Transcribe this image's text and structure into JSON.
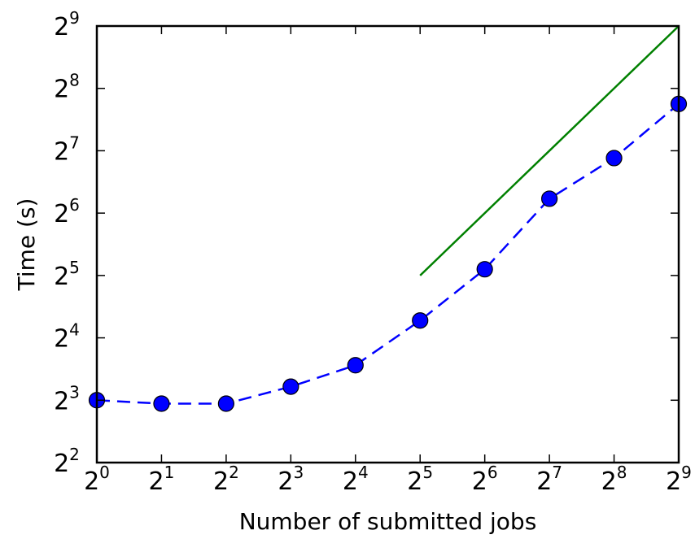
{
  "chart_data": {
    "type": "line",
    "xlabel": "Number of submitted jobs",
    "ylabel": "Time (s)",
    "xscale": "log2",
    "yscale": "log2",
    "xlim": [
      1,
      512
    ],
    "ylim": [
      4,
      512
    ],
    "x_ticks": [
      {
        "base": "2",
        "exp": "0"
      },
      {
        "base": "2",
        "exp": "1"
      },
      {
        "base": "2",
        "exp": "2"
      },
      {
        "base": "2",
        "exp": "3"
      },
      {
        "base": "2",
        "exp": "4"
      },
      {
        "base": "2",
        "exp": "5"
      },
      {
        "base": "2",
        "exp": "6"
      },
      {
        "base": "2",
        "exp": "7"
      },
      {
        "base": "2",
        "exp": "8"
      },
      {
        "base": "2",
        "exp": "9"
      }
    ],
    "y_ticks": [
      {
        "base": "2",
        "exp": "2"
      },
      {
        "base": "2",
        "exp": "3"
      },
      {
        "base": "2",
        "exp": "4"
      },
      {
        "base": "2",
        "exp": "5"
      },
      {
        "base": "2",
        "exp": "6"
      },
      {
        "base": "2",
        "exp": "7"
      },
      {
        "base": "2",
        "exp": "8"
      },
      {
        "base": "2",
        "exp": "9"
      }
    ],
    "grid": false,
    "series": [
      {
        "style": "dashed line with circle markers",
        "color": "#0000ff",
        "x": [
          1,
          2,
          4,
          8,
          16,
          32,
          64,
          128,
          256,
          512
        ],
        "y": [
          8.0,
          7.7,
          7.7,
          9.3,
          11.8,
          19.4,
          34.3,
          75.1,
          118.0,
          215.3
        ]
      },
      {
        "style": "solid line",
        "color": "#008000",
        "x": [
          32,
          512
        ],
        "y": [
          32,
          512
        ]
      }
    ]
  }
}
